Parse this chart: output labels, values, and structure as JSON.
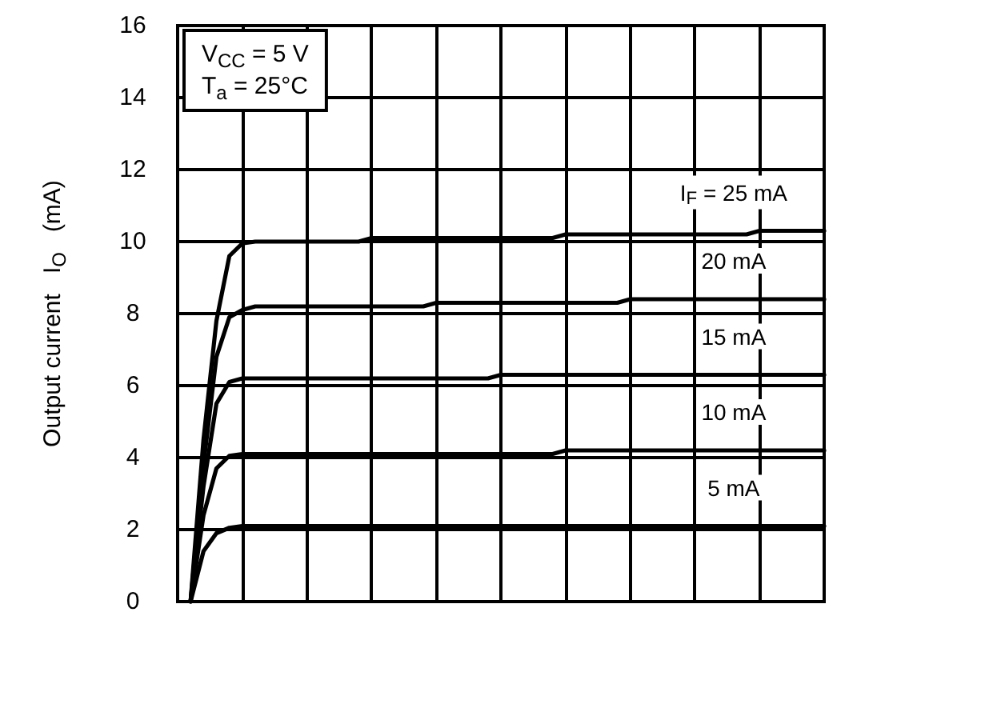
{
  "chart_data": {
    "type": "line",
    "ylabel": "Output current   I$_{O}$   (mA)",
    "categories": [
      null,
      null,
      null,
      null,
      null,
      null,
      null,
      null,
      null,
      null,
      null,
      null,
      null,
      null,
      null,
      null,
      null,
      null,
      null,
      null,
      null,
      null,
      null,
      null,
      null,
      null,
      null,
      null,
      null,
      null,
      null,
      null,
      null,
      null,
      null,
      null,
      null,
      null,
      null,
      null,
      null,
      null,
      null,
      null,
      null,
      null,
      null,
      null,
      null,
      null,
      null
    ],
    "ylim": [
      0,
      16
    ],
    "yticks": [
      0,
      2,
      4,
      6,
      8,
      10,
      12,
      14,
      16
    ],
    "grid": true,
    "marker": "none",
    "line_style": "solid",
    "series": [
      {
        "color": "#000000",
        "values": [
          null,
          0,
          4.5,
          7.8,
          9.6,
          9.95,
          10.0,
          10.0,
          10.0,
          10.0,
          10.0,
          10.0,
          10.0,
          10.0,
          10.0,
          10.1,
          10.1,
          10.1,
          10.1,
          10.1,
          10.1,
          10.1,
          10.1,
          10.1,
          10.1,
          10.1,
          10.1,
          10.1,
          10.1,
          10.1,
          10.2,
          10.2,
          10.2,
          10.2,
          10.2,
          10.2,
          10.2,
          10.2,
          10.2,
          10.2,
          10.2,
          10.2,
          10.2,
          10.2,
          10.2,
          10.3,
          10.3,
          10.3,
          10.3,
          10.3,
          10.3
        ]
      },
      {
        "color": "#000000",
        "values": [
          null,
          0,
          3.8,
          6.8,
          7.9,
          8.1,
          8.2,
          8.2,
          8.2,
          8.2,
          8.2,
          8.2,
          8.2,
          8.2,
          8.2,
          8.2,
          8.2,
          8.2,
          8.2,
          8.2,
          8.3,
          8.3,
          8.3,
          8.3,
          8.3,
          8.3,
          8.3,
          8.3,
          8.3,
          8.3,
          8.3,
          8.3,
          8.3,
          8.3,
          8.3,
          8.4,
          8.4,
          8.4,
          8.4,
          8.4,
          8.4,
          8.4,
          8.4,
          8.4,
          8.4,
          8.4,
          8.4,
          8.4,
          8.4,
          8.4,
          8.4
        ]
      },
      {
        "color": "#000000",
        "values": [
          null,
          0,
          3.2,
          5.5,
          6.1,
          6.2,
          6.2,
          6.2,
          6.2,
          6.2,
          6.2,
          6.2,
          6.2,
          6.2,
          6.2,
          6.2,
          6.2,
          6.2,
          6.2,
          6.2,
          6.2,
          6.2,
          6.2,
          6.2,
          6.2,
          6.3,
          6.3,
          6.3,
          6.3,
          6.3,
          6.3,
          6.3,
          6.3,
          6.3,
          6.3,
          6.3,
          6.3,
          6.3,
          6.3,
          6.3,
          6.3,
          6.3,
          6.3,
          6.3,
          6.3,
          6.3,
          6.3,
          6.3,
          6.3,
          6.3,
          6.3
        ]
      },
      {
        "color": "#000000",
        "values": [
          null,
          0,
          2.4,
          3.7,
          4.05,
          4.1,
          4.1,
          4.1,
          4.1,
          4.1,
          4.1,
          4.1,
          4.1,
          4.1,
          4.1,
          4.1,
          4.1,
          4.1,
          4.1,
          4.1,
          4.1,
          4.1,
          4.1,
          4.1,
          4.1,
          4.1,
          4.1,
          4.1,
          4.1,
          4.1,
          4.2,
          4.2,
          4.2,
          4.2,
          4.2,
          4.2,
          4.2,
          4.2,
          4.2,
          4.2,
          4.2,
          4.2,
          4.2,
          4.2,
          4.2,
          4.2,
          4.2,
          4.2,
          4.2,
          4.2,
          4.2
        ]
      },
      {
        "color": "#000000",
        "values": [
          null,
          0,
          1.4,
          1.9,
          2.05,
          2.1,
          2.1,
          2.1,
          2.1,
          2.1,
          2.1,
          2.1,
          2.1,
          2.1,
          2.1,
          2.1,
          2.1,
          2.1,
          2.1,
          2.1,
          2.1,
          2.1,
          2.1,
          2.1,
          2.1,
          2.1,
          2.1,
          2.1,
          2.1,
          2.1,
          2.1,
          2.1,
          2.1,
          2.1,
          2.1,
          2.1,
          2.1,
          2.1,
          2.1,
          2.1,
          2.1,
          2.1,
          2.1,
          2.1,
          2.1,
          2.1,
          2.1,
          2.1,
          2.1,
          2.1,
          2.1
        ]
      }
    ],
    "annotations": [
      "V$_{CC}$ = 5 V\nT$_{a}$ = 25°C",
      "I$_{F}$ = 25 mA",
      "20 mA",
      "15 mA",
      "10 mA",
      "5 mA"
    ]
  }
}
